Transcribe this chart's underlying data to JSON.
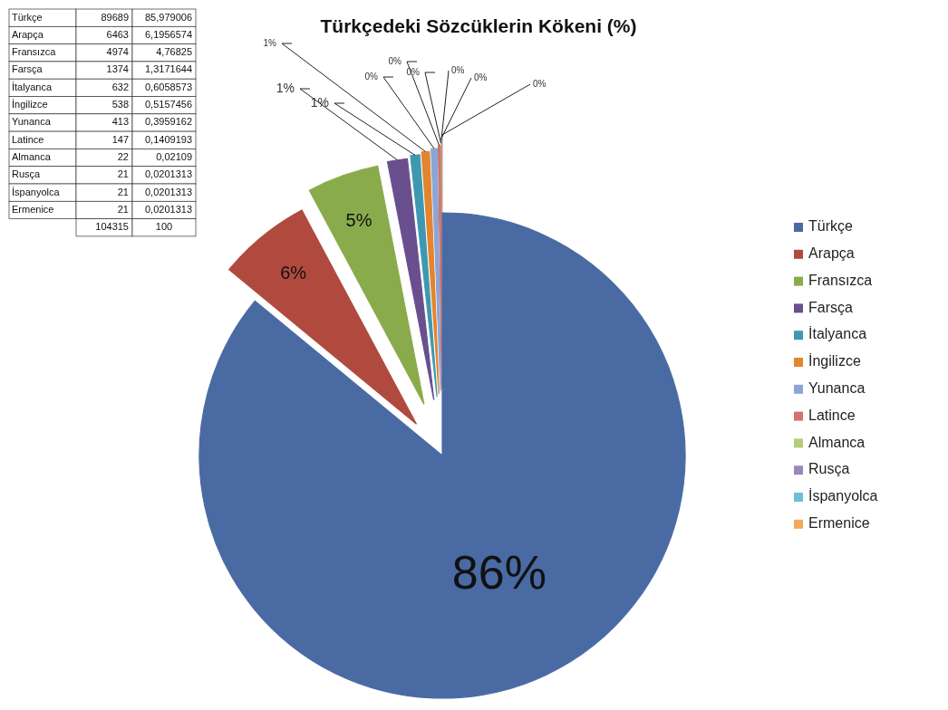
{
  "chart_data": {
    "type": "pie",
    "title": "Türkçedeki Sözcüklerin Kökeni (%)",
    "categories": [
      "Türkçe",
      "Arapça",
      "Fransızca",
      "Farsça",
      "İtalyanca",
      "İngilizce",
      "Yunanca",
      "Latince",
      "Almanca",
      "Rusça",
      "İspanyolca",
      "Ermenice"
    ],
    "values": [
      85.979006,
      6.1956574,
      4.76825,
      1.3171644,
      0.6058573,
      0.5157456,
      0.3959162,
      0.1409193,
      0.02109,
      0.0201313,
      0.0201313,
      0.0201313
    ],
    "value_labels": [
      "86%",
      "6%",
      "5%",
      "1%",
      "1%",
      "1%",
      "0%",
      "0%",
      "0%",
      "0%",
      "0%",
      "0%"
    ],
    "colors": [
      "#4a6aa3",
      "#b04a3f",
      "#8aab4c",
      "#6a4f8f",
      "#3e98b2",
      "#e2852f",
      "#8ba5d6",
      "#d5726c",
      "#b3cc78",
      "#9b86bb",
      "#6bbfd6",
      "#f4a95c"
    ],
    "annotations": [
      "89689",
      "6463",
      "4974",
      "1374",
      "632",
      "538",
      "413",
      "147",
      "22",
      "21",
      "21",
      "21",
      "85,979006",
      "6,1956574",
      "4,76825",
      "1,3171644",
      "0,6058573",
      "0,5157456",
      "0,3959162",
      "0,1409193",
      "0,02109",
      "0,0201313",
      "0,0201313",
      "0,0201313",
      "104315",
      "100"
    ],
    "legend": "right"
  }
}
